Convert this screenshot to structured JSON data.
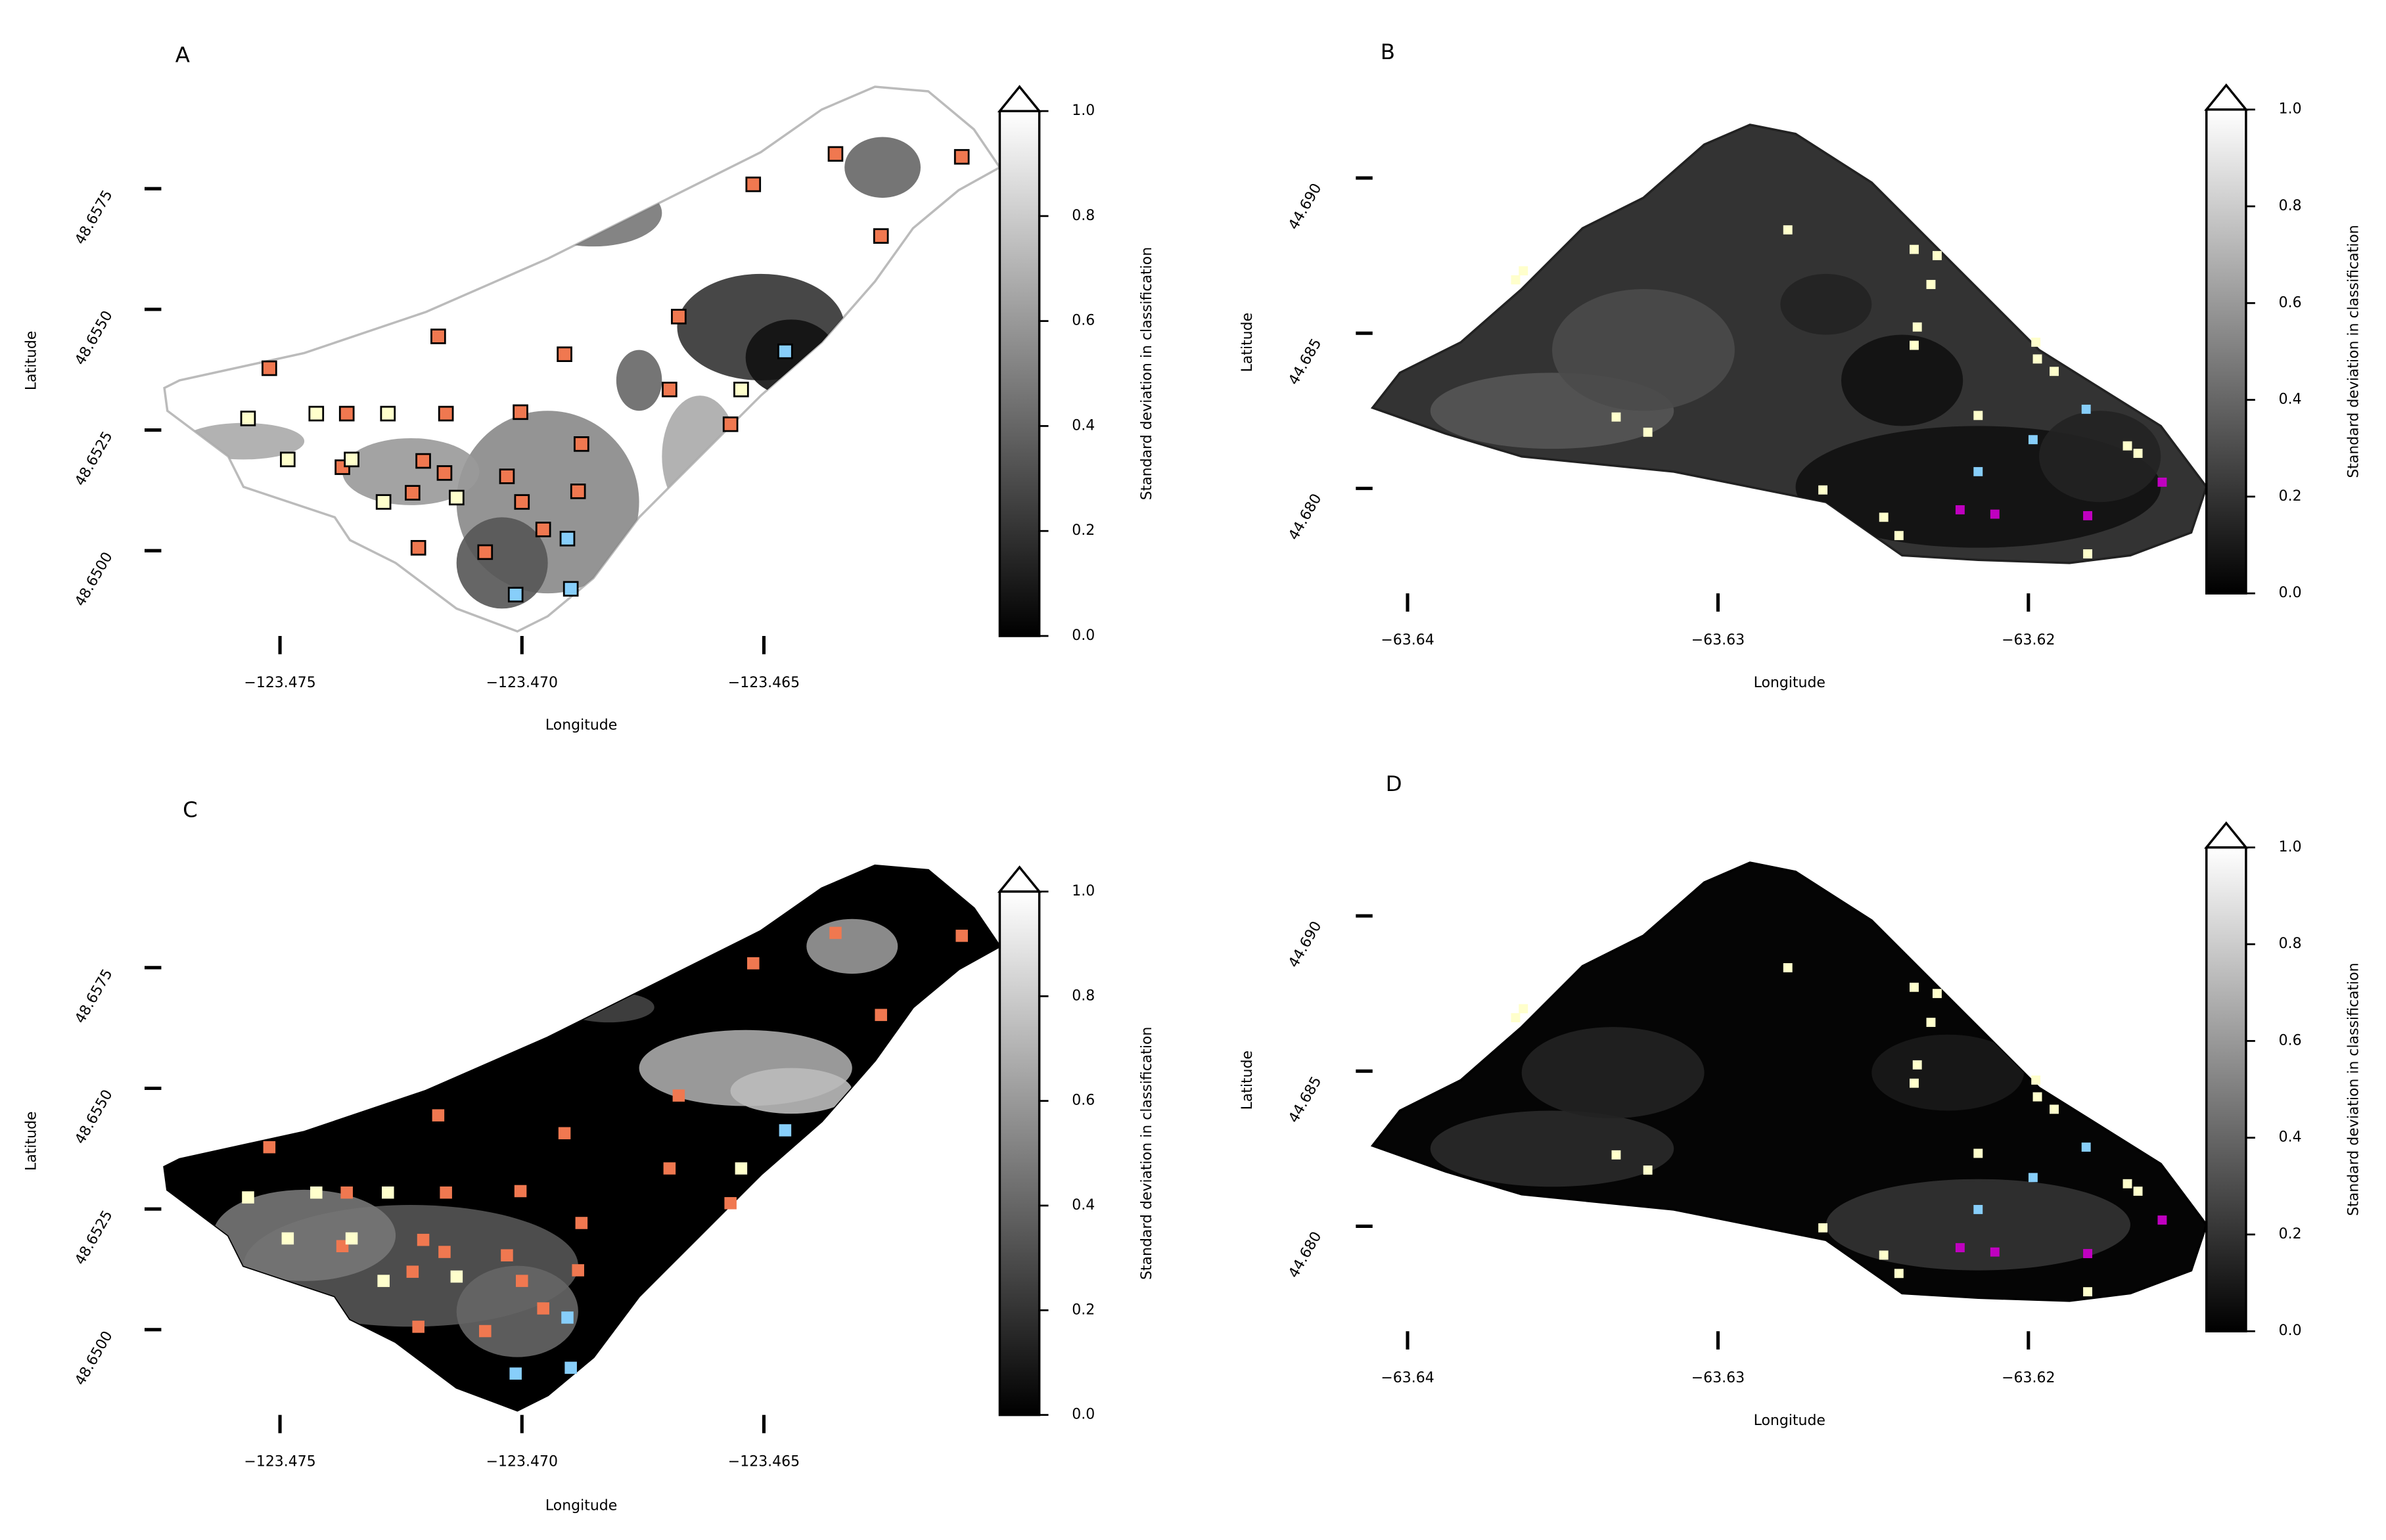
{
  "chart_data": [
    {
      "type": "map",
      "panel_label": "A",
      "xlabel": "Longitude",
      "ylabel": "Latitude",
      "xlim": [
        -123.4775,
        -123.46
      ],
      "ylim": [
        48.648,
        48.66
      ],
      "xticks": [
        {
          "value": -123.475,
          "label": "−123.475"
        },
        {
          "value": -123.47,
          "label": "−123.470"
        },
        {
          "value": -123.465,
          "label": "−123.465"
        }
      ],
      "yticks": [
        48.6575,
        {
          "value": 48.655,
          "label": "48.6550"
        },
        48.6525,
        {
          "value": 48.65,
          "label": "48.6500"
        }
      ],
      "marker_edgecolor": "#000000",
      "series": [
        {
          "color": "#f07850",
          "x": [
            -123.46352,
            -123.46091,
            -123.46522,
            -123.46258,
            -123.46676,
            -123.47173,
            -123.46912,
            -123.47522,
            -123.46695,
            -123.47362,
            -123.47157,
            -123.47003,
            -123.46569,
            -123.46877,
            -123.47371,
            -123.47204,
            -123.4716,
            -123.47031,
            -123.47226,
            -123.46884,
            -123.47,
            -123.47214,
            -123.47076,
            -123.46956
          ],
          "y": [
            48.65822,
            48.65816,
            48.65759,
            48.65652,
            48.65485,
            48.65444,
            48.65407,
            48.65378,
            48.65334,
            48.65284,
            48.65284,
            48.65287,
            48.65262,
            48.65221,
            48.65173,
            48.65186,
            48.65161,
            48.65154,
            48.6512,
            48.65123,
            48.65101,
            48.65006,
            48.64997,
            48.65044
          ]
        },
        {
          "color": "#ffffcc",
          "x": [
            -123.47566,
            -123.47425,
            -123.47277,
            -123.47484,
            -123.47352,
            -123.47286,
            -123.47135,
            -123.46547
          ],
          "y": [
            48.65274,
            48.65284,
            48.65284,
            48.65189,
            48.65189,
            48.65101,
            48.6511,
            48.65334
          ]
        },
        {
          "color": "#87cefa",
          "x": [
            -123.46456,
            -123.46906,
            -123.47013,
            -123.46899
          ],
          "y": [
            48.65413,
            48.65025,
            48.64909,
            48.64921
          ]
        }
      ],
      "colorbar": {
        "label": "Standard deviation in classification",
        "lim": [
          0,
          1
        ],
        "extend": "max",
        "colors": [
          "#000000",
          "#ffffff"
        ],
        "ticks": [
          {
            "value": 0,
            "label": "0.0"
          },
          0.2,
          0.4,
          0.6,
          0.8,
          {
            "value": 1,
            "label": "1.0"
          }
        ]
      }
    },
    {
      "type": "map",
      "panel_label": "B",
      "xlabel": "Longitude",
      "ylabel": "Latitude",
      "xlim": [
        -63.642,
        -63.614
      ],
      "ylim": [
        44.677,
        44.6915
      ],
      "xticks": [
        {
          "value": -63.64,
          "label": "−63.64"
        },
        {
          "value": -63.63,
          "label": "−63.63"
        },
        {
          "value": -63.62,
          "label": "−63.62"
        }
      ],
      "yticks": [
        {
          "value": 44.69,
          "label": "44.690"
        },
        44.685,
        {
          "value": 44.68,
          "label": "44.680"
        }
      ],
      "series": [
        {
          "color": "#ffffcc",
          "x": [
            -63.63652,
            -63.63627,
            -63.62775,
            -63.62368,
            -63.62294,
            -63.62314,
            -63.62358,
            -63.62368,
            -63.61976,
            -63.61971,
            -63.61917,
            -63.62162,
            -63.63328,
            -63.63226,
            -63.62662,
            -63.62466,
            -63.62417,
            -63.61681,
            -63.61647,
            -63.61809
          ],
          "y": [
            44.68672,
            44.68701,
            44.68833,
            44.6877,
            44.6875,
            44.68657,
            44.6852,
            44.68461,
            44.68471,
            44.68417,
            44.68377,
            44.68235,
            44.6823,
            44.68181,
            44.67995,
            44.67907,
            44.67848,
            44.68137,
            44.68113,
            44.67789
          ]
        },
        {
          "color": "#87cefa",
          "x": [
            -63.61814,
            -63.61985,
            -63.62162
          ],
          "y": [
            44.68255,
            44.68157,
            44.68054
          ]
        },
        {
          "color": "#c000c0",
          "x": [
            -63.6222,
            -63.62108,
            -63.61809,
            -63.61569
          ],
          "y": [
            44.67931,
            44.67917,
            44.67912,
            44.6802
          ]
        }
      ],
      "colorbar": {
        "label": "Standard deviation in classification",
        "lim": [
          0,
          1
        ],
        "extend": "max",
        "colors": [
          "#000000",
          "#ffffff"
        ],
        "ticks": [
          {
            "value": 0,
            "label": "0.0"
          },
          0.2,
          0.4,
          0.6,
          0.8,
          {
            "value": 1,
            "label": "1.0"
          }
        ]
      }
    },
    {
      "type": "map",
      "panel_label": "C",
      "xlabel": "Longitude",
      "ylabel": "Latitude",
      "xlim": [
        -123.4775,
        -123.46
      ],
      "ylim": [
        48.648,
        48.66
      ],
      "xticks": [
        {
          "value": -123.475,
          "label": "−123.475"
        },
        {
          "value": -123.47,
          "label": "−123.470"
        },
        {
          "value": -123.465,
          "label": "−123.465"
        }
      ],
      "yticks": [
        48.6575,
        {
          "value": 48.655,
          "label": "48.6550"
        },
        48.6525,
        {
          "value": 48.65,
          "label": "48.6500"
        }
      ],
      "series": [
        {
          "color": "#f07850",
          "x": [
            -123.46352,
            -123.46091,
            -123.46522,
            -123.46258,
            -123.46676,
            -123.47173,
            -123.46912,
            -123.47522,
            -123.46695,
            -123.47362,
            -123.47157,
            -123.47003,
            -123.46569,
            -123.46877,
            -123.47371,
            -123.47204,
            -123.4716,
            -123.47031,
            -123.47226,
            -123.46884,
            -123.47,
            -123.47214,
            -123.47076,
            -123.46956
          ],
          "y": [
            48.65822,
            48.65816,
            48.65759,
            48.65652,
            48.65485,
            48.65444,
            48.65407,
            48.65378,
            48.65334,
            48.65284,
            48.65284,
            48.65287,
            48.65262,
            48.65221,
            48.65173,
            48.65186,
            48.65161,
            48.65154,
            48.6512,
            48.65123,
            48.65101,
            48.65006,
            48.64997,
            48.65044
          ]
        },
        {
          "color": "#ffffcc",
          "x": [
            -123.47566,
            -123.47425,
            -123.47277,
            -123.47484,
            -123.47352,
            -123.47286,
            -123.47135,
            -123.46547
          ],
          "y": [
            48.65274,
            48.65284,
            48.65284,
            48.65189,
            48.65189,
            48.65101,
            48.6511,
            48.65334
          ]
        },
        {
          "color": "#87cefa",
          "x": [
            -123.46456,
            -123.46906,
            -123.47013,
            -123.46899
          ],
          "y": [
            48.65413,
            48.65025,
            48.64909,
            48.64921
          ]
        }
      ],
      "colorbar": {
        "label": "Standard deviation in classification",
        "lim": [
          0,
          1
        ],
        "extend": "max",
        "colors": [
          "#000000",
          "#ffffff"
        ],
        "ticks": [
          {
            "value": 0,
            "label": "0.0"
          },
          0.2,
          0.4,
          0.6,
          0.8,
          {
            "value": 1,
            "label": "1.0"
          }
        ]
      }
    },
    {
      "type": "map",
      "panel_label": "D",
      "xlabel": "Longitude",
      "ylabel": "Latitude",
      "xlim": [
        -63.642,
        -63.614
      ],
      "ylim": [
        44.677,
        44.6915
      ],
      "xticks": [
        {
          "value": -63.64,
          "label": "−63.64"
        },
        {
          "value": -63.63,
          "label": "−63.63"
        },
        {
          "value": -63.62,
          "label": "−63.62"
        }
      ],
      "yticks": [
        {
          "value": 44.69,
          "label": "44.690"
        },
        44.685,
        {
          "value": 44.68,
          "label": "44.680"
        }
      ],
      "series": [
        {
          "color": "#ffffcc",
          "x": [
            -63.63652,
            -63.63627,
            -63.62775,
            -63.62368,
            -63.62294,
            -63.62314,
            -63.62358,
            -63.62368,
            -63.61976,
            -63.61971,
            -63.61917,
            -63.62162,
            -63.63328,
            -63.63226,
            -63.62662,
            -63.62466,
            -63.62417,
            -63.61681,
            -63.61647,
            -63.61809
          ],
          "y": [
            44.68672,
            44.68701,
            44.68833,
            44.6877,
            44.6875,
            44.68657,
            44.6852,
            44.68461,
            44.68471,
            44.68417,
            44.68377,
            44.68235,
            44.6823,
            44.68181,
            44.67995,
            44.67907,
            44.67848,
            44.68137,
            44.68113,
            44.67789
          ]
        },
        {
          "color": "#87cefa",
          "x": [
            -63.61814,
            -63.61985,
            -63.62162
          ],
          "y": [
            44.68255,
            44.68157,
            44.68054
          ]
        },
        {
          "color": "#c000c0",
          "x": [
            -63.6222,
            -63.62108,
            -63.61809,
            -63.61569
          ],
          "y": [
            44.67931,
            44.67917,
            44.67912,
            44.6802
          ]
        }
      ],
      "colorbar": {
        "label": "Standard deviation in classification",
        "lim": [
          0,
          1
        ],
        "extend": "max",
        "colors": [
          "#000000",
          "#ffffff"
        ],
        "ticks": [
          {
            "value": 0,
            "label": "0.0"
          },
          0.2,
          0.4,
          0.6,
          0.8,
          {
            "value": 1,
            "label": "1.0"
          }
        ]
      }
    }
  ]
}
